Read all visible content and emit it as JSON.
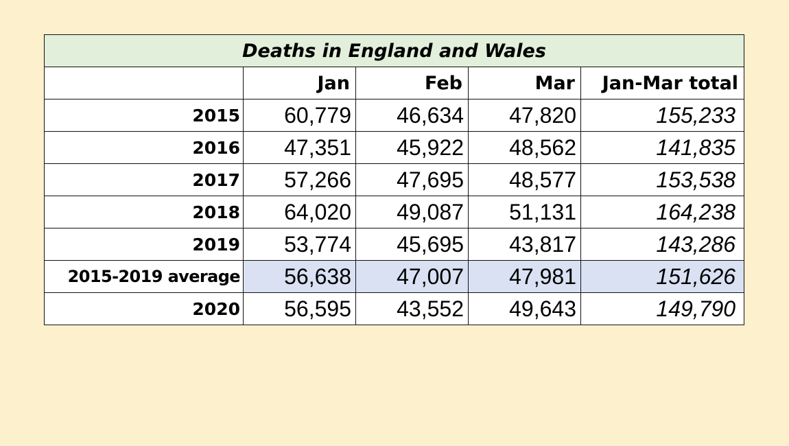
{
  "table": {
    "title": "Deaths in England and Wales",
    "columns": [
      "",
      "Jan",
      "Feb",
      "Mar",
      "Jan-Mar total"
    ],
    "rows": [
      {
        "label": "2015",
        "values": [
          "60,779",
          "46,634",
          "47,820",
          "155,233"
        ]
      },
      {
        "label": "2016",
        "values": [
          "47,351",
          "45,922",
          "48,562",
          "141,835"
        ]
      },
      {
        "label": "2017",
        "values": [
          "57,266",
          "47,695",
          "48,577",
          "153,538"
        ]
      },
      {
        "label": "2018",
        "values": [
          "64,020",
          "49,087",
          "51,131",
          "164,238"
        ]
      },
      {
        "label": "2019",
        "values": [
          "53,774",
          "45,695",
          "43,817",
          "143,286"
        ]
      },
      {
        "label": "2015-2019 average",
        "values": [
          "56,638",
          "47,007",
          "47,981",
          "151,626"
        ]
      },
      {
        "label": "2020",
        "values": [
          "56,595",
          "43,552",
          "49,643",
          "149,790"
        ]
      }
    ]
  },
  "colors": {
    "page_background": "#fdf0cc",
    "title_background": "#e2efda",
    "average_row_highlight": "#d9e1f2"
  }
}
